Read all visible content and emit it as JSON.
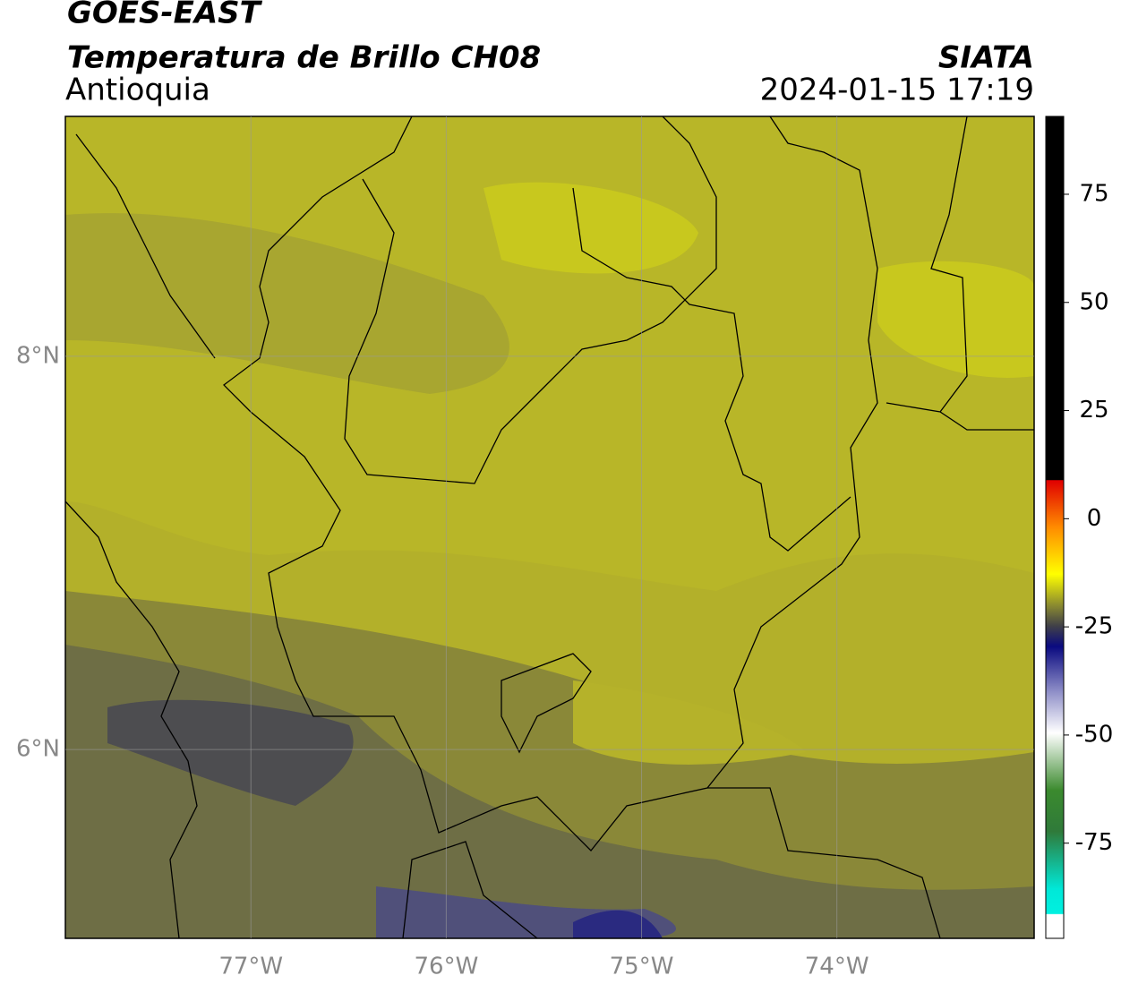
{
  "header": {
    "title": "GOES-EAST",
    "subtitle": "Temperatura de Brillo CH08",
    "region": "Antioquia",
    "source": "SIATA",
    "datetime": "2024-01-15 17:19"
  },
  "map": {
    "xlim": [
      -77.95,
      -72.99
    ],
    "ylim": [
      5.04,
      9.22
    ],
    "xticks": [
      {
        "value": -77,
        "label": "77°W"
      },
      {
        "value": -76,
        "label": "76°W"
      },
      {
        "value": -75,
        "label": "75°W"
      },
      {
        "value": -74,
        "label": "74°W"
      }
    ],
    "yticks": [
      {
        "value": 8,
        "label": "8°N"
      },
      {
        "value": 6,
        "label": "6°N"
      }
    ],
    "grid": true
  },
  "colorbar": {
    "lim": [
      -97,
      93
    ],
    "ticks": [
      75,
      50,
      25,
      0,
      -25,
      -50,
      -75
    ]
  }
}
